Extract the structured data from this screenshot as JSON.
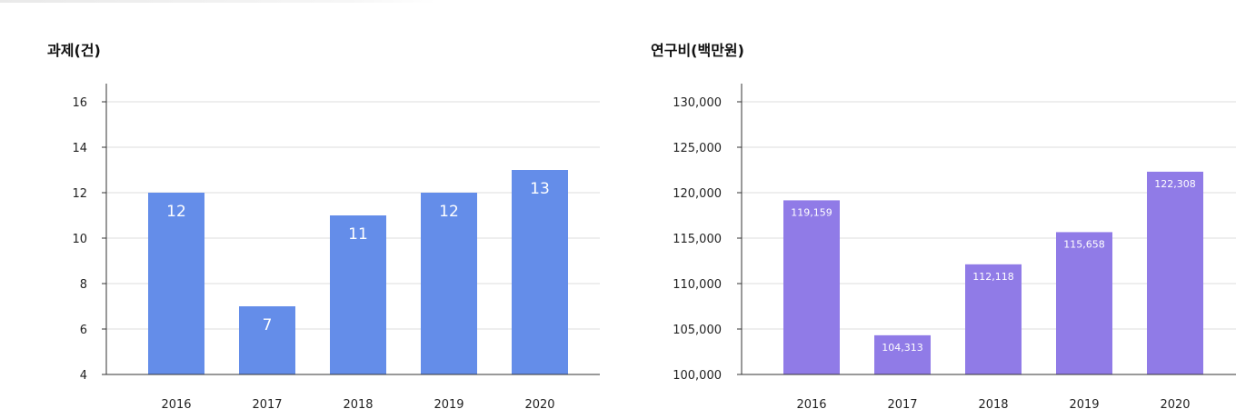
{
  "chart_data": [
    {
      "type": "bar",
      "title": "과제(건)",
      "xlabel": "",
      "ylabel": "",
      "categories": [
        "2016",
        "2017",
        "2018",
        "2019",
        "2020"
      ],
      "values": [
        12,
        7,
        11,
        12,
        13
      ],
      "value_labels": [
        "12",
        "7",
        "11",
        "12",
        "13"
      ],
      "ylim": [
        4,
        16.8
      ],
      "yticks": [
        4,
        6,
        8,
        10,
        12,
        14,
        16
      ],
      "ytick_labels": [
        "4",
        "6",
        "8",
        "10",
        "12",
        "14",
        "16"
      ],
      "grid": true,
      "bar_color": "#648de9"
    },
    {
      "type": "bar",
      "title": "연구비(백만원)",
      "xlabel": "",
      "ylabel": "",
      "categories": [
        "2016",
        "2017",
        "2018",
        "2019",
        "2020"
      ],
      "values": [
        119159,
        104313,
        112118,
        115658,
        122308
      ],
      "value_labels": [
        "119,159",
        "104,313",
        "112,118",
        "115,658",
        "122,308"
      ],
      "ylim": [
        100000,
        132000
      ],
      "yticks": [
        100000,
        105000,
        110000,
        115000,
        120000,
        125000,
        130000
      ],
      "ytick_labels": [
        "100,000",
        "105,000",
        "110,000",
        "115,000",
        "120,000",
        "125,000",
        "130,000"
      ],
      "grid": true,
      "bar_color": "#907be7"
    }
  ]
}
